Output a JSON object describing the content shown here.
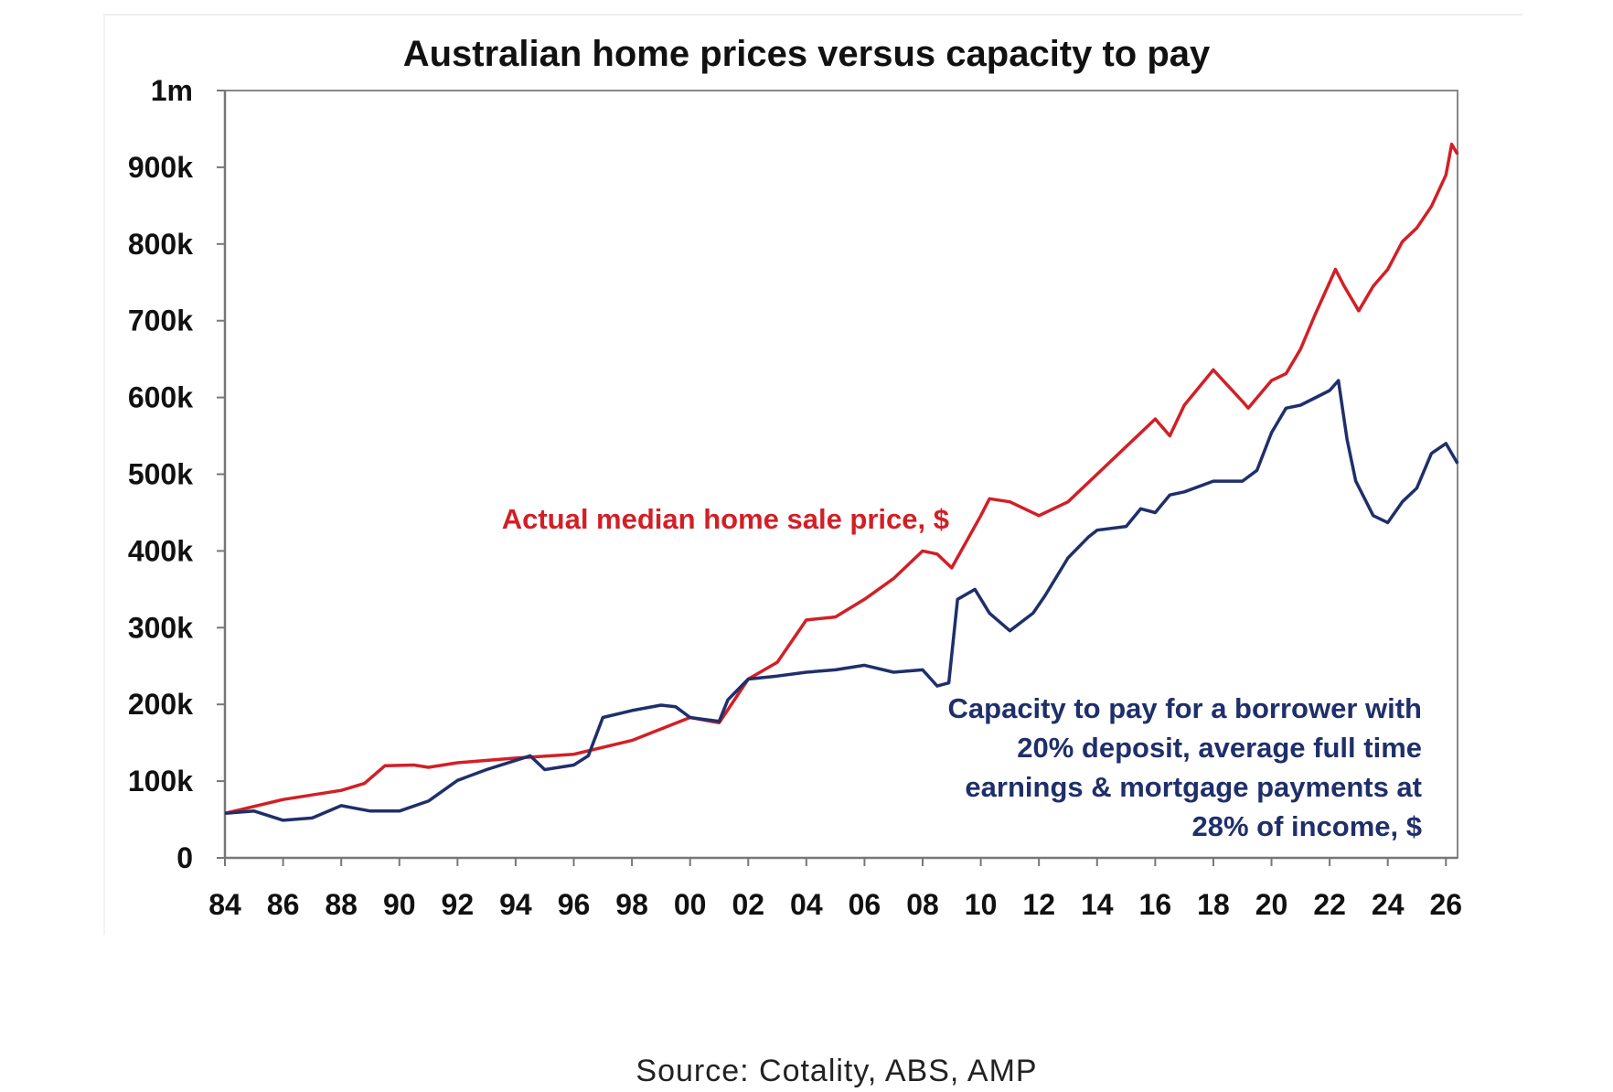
{
  "chart_data": {
    "type": "line",
    "title": "Australian home prices versus capacity to pay",
    "xlabel": "",
    "ylabel": "",
    "xlim": [
      1984,
      2026.4
    ],
    "ylim": [
      0,
      1000000
    ],
    "grid": false,
    "x_tick_labels": [
      "84",
      "86",
      "88",
      "90",
      "92",
      "94",
      "96",
      "98",
      "00",
      "02",
      "04",
      "06",
      "08",
      "10",
      "12",
      "14",
      "16",
      "18",
      "20",
      "22",
      "24",
      "26"
    ],
    "y_tick_labels": [
      "0",
      "100k",
      "200k",
      "300k",
      "400k",
      "500k",
      "600k",
      "700k",
      "800k",
      "900k",
      "1m"
    ],
    "series": [
      {
        "name": "Actual median home sale price, $",
        "color": "#d21f26",
        "x": [
          1984,
          1986,
          1988,
          1988.8,
          1989.5,
          1990.5,
          1991,
          1992,
          1994,
          1996,
          1998,
          2000,
          2001,
          2002,
          2003,
          2004,
          2005,
          2006,
          2007,
          2008,
          2008.5,
          2009,
          2010,
          2010.3,
          2011,
          2012,
          2013,
          2014,
          2015,
          2016,
          2016.5,
          2017,
          2018,
          2019,
          2019.2,
          2020,
          2020.5,
          2021,
          2021.5,
          2022.2,
          2022.5,
          2023,
          2023.5,
          2024,
          2024.5,
          2025,
          2025.5,
          2026,
          2026.2,
          2026.4
        ],
        "y": [
          58000,
          76000,
          88000,
          97000,
          120000,
          121000,
          118000,
          124000,
          130000,
          135000,
          153000,
          183000,
          176000,
          233000,
          255000,
          310000,
          314000,
          337000,
          364000,
          400000,
          396000,
          378000,
          446000,
          468000,
          464000,
          446000,
          464000,
          500000,
          536000,
          572000,
          550000,
          590000,
          636000,
          595000,
          586000,
          622000,
          631000,
          663000,
          708000,
          767000,
          745000,
          713000,
          745000,
          767000,
          803000,
          821000,
          849000,
          890000,
          930000,
          917000
        ]
      },
      {
        "name": "Capacity to pay for a borrower with 20% deposit, average full time earnings & mortgage payments at 28% of income, $",
        "color": "#1f2f6b",
        "x": [
          1984,
          1985,
          1986,
          1987,
          1988,
          1989,
          1990,
          1991,
          1992,
          1993,
          1994,
          1994.5,
          1995,
          1996,
          1996.5,
          1997,
          1998,
          1999,
          1999.5,
          2000,
          2001,
          2001.3,
          2002,
          2003,
          2004,
          2005,
          2006,
          2007,
          2008,
          2008.5,
          2008.9,
          2009.2,
          2009.8,
          2010.3,
          2011,
          2011.8,
          2012.2,
          2013,
          2013.7,
          2014,
          2015,
          2015.5,
          2016,
          2016.5,
          2017,
          2018,
          2019,
          2019.5,
          2020,
          2020.5,
          2021,
          2022,
          2022.3,
          2022.6,
          2022.9,
          2023.5,
          2024,
          2024.5,
          2025,
          2025.5,
          2026,
          2026.4
        ],
        "y": [
          58000,
          61000,
          49000,
          52000,
          68000,
          61000,
          61000,
          74000,
          101000,
          115000,
          127000,
          133000,
          115000,
          121000,
          133000,
          183000,
          192000,
          199000,
          197000,
          183000,
          178000,
          206000,
          233000,
          237000,
          242000,
          245000,
          251000,
          242000,
          245000,
          224000,
          228000,
          337000,
          350000,
          319000,
          296000,
          319000,
          341000,
          391000,
          418000,
          427000,
          432000,
          455000,
          450000,
          473000,
          477000,
          491000,
          491000,
          505000,
          554000,
          586000,
          590000,
          609000,
          622000,
          545000,
          491000,
          446000,
          437000,
          464000,
          482000,
          527000,
          540000,
          514000
        ]
      }
    ],
    "annotations": {
      "red_label": "Actual median home sale price, $",
      "blue_label_lines": [
        "Capacity to pay for a borrower with",
        "20% deposit, average full time",
        "earnings & mortgage payments at",
        "28% of income, $"
      ]
    }
  },
  "source": "Source:  Cotality,  ABS,  AMP"
}
